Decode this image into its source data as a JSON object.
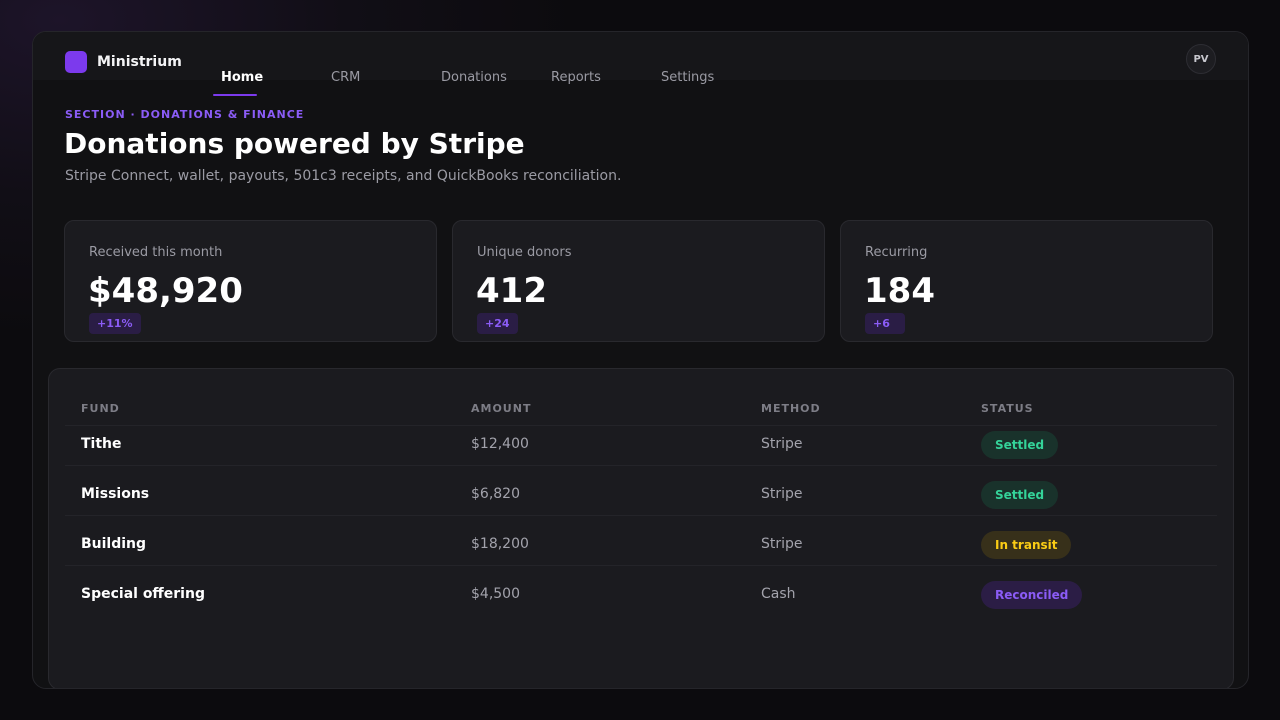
{
  "app": {
    "brand": "Ministrium",
    "avatar_initials": "PV",
    "accent_color": "#7c3aed"
  },
  "nav": {
    "tabs": [
      {
        "label": "Home",
        "active": true
      },
      {
        "label": "CRM",
        "active": false
      },
      {
        "label": "Donations",
        "active": false
      },
      {
        "label": "Reports",
        "active": false
      },
      {
        "label": "Settings",
        "active": false
      }
    ]
  },
  "header": {
    "section_label": "SECTION · DONATIONS & FINANCE",
    "title": "Donations powered by Stripe",
    "subtitle": "Stripe Connect, wallet, payouts, 501c3 receipts, and QuickBooks reconciliation."
  },
  "stats": [
    {
      "label": "Received this month",
      "value": "$48,920",
      "delta": "+11%"
    },
    {
      "label": "Unique donors",
      "value": "412",
      "delta": "+24"
    },
    {
      "label": "Recurring",
      "value": "184",
      "delta": "+6"
    }
  ],
  "table": {
    "columns": [
      "FUND",
      "AMOUNT",
      "METHOD",
      "STATUS"
    ],
    "rows": [
      {
        "fund": "Tithe",
        "amount": "$12,400",
        "method": "Stripe",
        "status": "Settled",
        "status_color": "#34d399"
      },
      {
        "fund": "Missions",
        "amount": "$6,820",
        "method": "Stripe",
        "status": "Settled",
        "status_color": "#34d399"
      },
      {
        "fund": "Building",
        "amount": "$18,200",
        "method": "Stripe",
        "status": "In transit",
        "status_color": "#facc15"
      },
      {
        "fund": "Special offering",
        "amount": "$4,500",
        "method": "Cash",
        "status": "Reconciled",
        "status_color": "#8b5cf6"
      }
    ]
  }
}
